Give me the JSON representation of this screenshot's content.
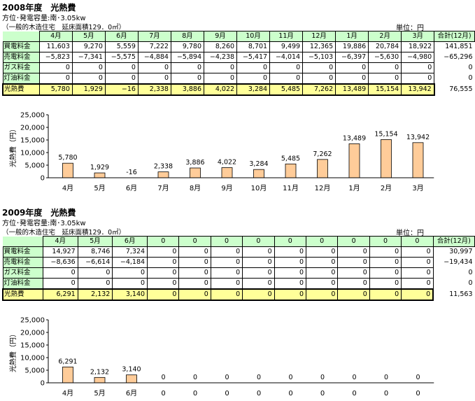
{
  "sections": [
    {
      "title": "2008年度　光熱費",
      "subtitle": "方位･発電容量:南･3.05kw",
      "note": "（一般的木造住宅　延床面積129．0㎡）",
      "unit": "単位：円",
      "table": {
        "months": [
          "4月",
          "5月",
          "6月",
          "7月",
          "8月",
          "9月",
          "10月",
          "11月",
          "12月",
          "1月",
          "2月",
          "3月"
        ],
        "total_header": "合計(12月)",
        "rows": [
          {
            "label": "買電料金",
            "values": [
              "11,603",
              "9,270",
              "5,559",
              "7,222",
              "9,780",
              "8,260",
              "8,701",
              "9,499",
              "12,365",
              "19,886",
              "20,784",
              "18,922"
            ],
            "total": "141,851"
          },
          {
            "label": "売電料金",
            "values": [
              "−5,823",
              "−7,341",
              "−5,575",
              "−4,884",
              "−5,894",
              "−4,238",
              "−5,417",
              "−4,014",
              "−5,103",
              "−6,397",
              "−5,630",
              "−4,980"
            ],
            "total": "−65,296"
          },
          {
            "label": "ガス料金",
            "values": [
              "0",
              "0",
              "0",
              "0",
              "0",
              "0",
              "0",
              "0",
              "0",
              "0",
              "0",
              "0"
            ],
            "total": "0"
          },
          {
            "label": "灯油料金",
            "values": [
              "0",
              "0",
              "0",
              "0",
              "0",
              "0",
              "0",
              "0",
              "0",
              "0",
              "0",
              "0"
            ],
            "total": "0"
          },
          {
            "label": "光熱費",
            "values": [
              "5,780",
              "1,929",
              "−16",
              "2,338",
              "3,886",
              "4,022",
              "3,284",
              "5,485",
              "7,262",
              "13,489",
              "15,154",
              "13,942"
            ],
            "total": "76,555"
          }
        ]
      }
    },
    {
      "title": "2009年度　光熱費",
      "subtitle": "方位･発電容量:南･3.05kw",
      "note": "（一般的木造住宅　延床面積129．0㎡）",
      "unit": "単位：円",
      "table": {
        "months": [
          "4月",
          "5月",
          "6月",
          "0",
          "0",
          "0",
          "0",
          "0",
          "0",
          "0",
          "0",
          "0"
        ],
        "total_header": "合計(12月)",
        "rows": [
          {
            "label": "買電料金",
            "values": [
              "14,927",
              "8,746",
              "7,324",
              "0",
              "0",
              "0",
              "0",
              "0",
              "0",
              "0",
              "0",
              "0"
            ],
            "total": "30,997"
          },
          {
            "label": "売電料金",
            "values": [
              "−8,636",
              "−6,614",
              "−4,184",
              "0",
              "0",
              "0",
              "0",
              "0",
              "0",
              "0",
              "0",
              "0"
            ],
            "total": "−19,434"
          },
          {
            "label": "ガス料金",
            "values": [
              "0",
              "0",
              "0",
              "0",
              "0",
              "0",
              "0",
              "0",
              "0",
              "0",
              "0",
              "0"
            ],
            "total": "0"
          },
          {
            "label": "灯油料金",
            "values": [
              "0",
              "0",
              "0",
              "0",
              "0",
              "0",
              "0",
              "0",
              "0",
              "0",
              "0",
              "0"
            ],
            "total": "0"
          },
          {
            "label": "光熱費",
            "values": [
              "6,291",
              "2,132",
              "3,140",
              "0",
              "0",
              "0",
              "0",
              "0",
              "0",
              "0",
              "0",
              "0"
            ],
            "total": "11,563"
          }
        ]
      }
    }
  ],
  "chart_data": [
    {
      "type": "bar",
      "title": "",
      "xlabel": "",
      "ylabel": "光熱費（円）",
      "categories": [
        "4月",
        "5月",
        "6月",
        "7月",
        "8月",
        "9月",
        "10月",
        "11月",
        "12月",
        "1月",
        "2月",
        "3月"
      ],
      "values": [
        5780,
        1929,
        -16,
        2338,
        3886,
        4022,
        3284,
        5485,
        7262,
        13489,
        15154,
        13942
      ],
      "data_labels": [
        "5,780",
        "1,929",
        "-16",
        "2,338",
        "3,886",
        "4,022",
        "3,284",
        "5,485",
        "7,262",
        "13,489",
        "15,154",
        "13,942"
      ],
      "ylim": [
        0,
        25000
      ],
      "yticks": [
        "0",
        "5,000",
        "10,000",
        "15,000",
        "20,000",
        "25,000"
      ],
      "grid": false,
      "legend": "none",
      "bar_color": "#ffcc99"
    },
    {
      "type": "bar",
      "title": "",
      "xlabel": "",
      "ylabel": "光熱費（円）",
      "categories": [
        "4月",
        "5月",
        "6月",
        "0",
        "0",
        "0",
        "0",
        "0",
        "0",
        "0",
        "0",
        "0"
      ],
      "values": [
        6291,
        2132,
        3140,
        0,
        0,
        0,
        0,
        0,
        0,
        0,
        0,
        0
      ],
      "data_labels": [
        "6,291",
        "2,132",
        "3,140",
        "0",
        "0",
        "0",
        "0",
        "0",
        "0",
        "0",
        "0",
        "0"
      ],
      "ylim": [
        0,
        25000
      ],
      "yticks": [
        "0",
        "5,000",
        "10,000",
        "15,000",
        "20,000",
        "25,000"
      ],
      "grid": false,
      "legend": "none",
      "bar_color": "#ffcc99"
    }
  ]
}
